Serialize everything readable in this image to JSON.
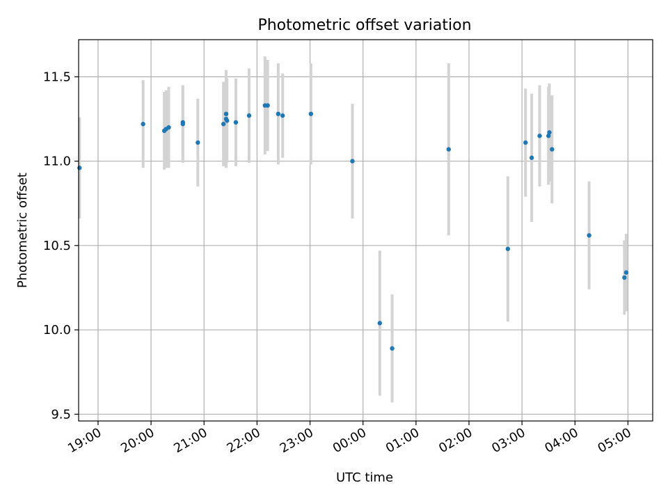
{
  "chart_data": {
    "type": "scatter",
    "title": "Photometric offset variation",
    "xlabel": "UTC time",
    "ylabel": "Photometric offset",
    "x_unit": "hour (wraps past midnight)",
    "xticks": [
      "19:00",
      "20:00",
      "21:00",
      "22:00",
      "23:00",
      "00:00",
      "01:00",
      "02:00",
      "03:00",
      "04:00",
      "05:00"
    ],
    "xlim": [
      "18:38",
      "05:28"
    ],
    "ylim": [
      9.46,
      11.72
    ],
    "yticks": [
      "9.5",
      "10.0",
      "10.5",
      "11.0",
      "11.5"
    ],
    "grid": true,
    "colors": {
      "point": "#1f77b4",
      "errorbar": "#d3d3d3",
      "grid": "#b0b0b0"
    },
    "points": [
      {
        "x": "18:39",
        "y": 10.96,
        "err": 0.3
      },
      {
        "x": "19:51",
        "y": 11.22,
        "err": 0.26
      },
      {
        "x": "20:15",
        "y": 11.18,
        "err": 0.23
      },
      {
        "x": "20:17",
        "y": 11.19,
        "err": 0.23
      },
      {
        "x": "20:20",
        "y": 11.2,
        "err": 0.24
      },
      {
        "x": "20:36",
        "y": 11.22,
        "err": 0.23
      },
      {
        "x": "20:36",
        "y": 11.23,
        "err": 0.22
      },
      {
        "x": "20:53",
        "y": 11.11,
        "err": 0.26
      },
      {
        "x": "21:22",
        "y": 11.22,
        "err": 0.25
      },
      {
        "x": "21:25",
        "y": 11.28,
        "err": 0.26
      },
      {
        "x": "21:25",
        "y": 11.25,
        "err": 0.29
      },
      {
        "x": "21:26",
        "y": 11.24,
        "err": 0.25
      },
      {
        "x": "21:36",
        "y": 11.23,
        "err": 0.26
      },
      {
        "x": "21:51",
        "y": 11.27,
        "err": 0.28
      },
      {
        "x": "22:09",
        "y": 11.33,
        "err": 0.29
      },
      {
        "x": "22:12",
        "y": 11.33,
        "err": 0.27
      },
      {
        "x": "22:24",
        "y": 11.28,
        "err": 0.3
      },
      {
        "x": "22:29",
        "y": 11.27,
        "err": 0.25
      },
      {
        "x": "23:01",
        "y": 11.28,
        "err": 0.3
      },
      {
        "x": "23:48",
        "y": 11.0,
        "err": 0.34
      },
      {
        "x": "00:19",
        "y": 10.04,
        "err": 0.43
      },
      {
        "x": "00:33",
        "y": 9.89,
        "err": 0.32
      },
      {
        "x": "01:37",
        "y": 11.07,
        "err": 0.51
      },
      {
        "x": "02:44",
        "y": 10.48,
        "err": 0.43
      },
      {
        "x": "03:04",
        "y": 11.11,
        "err": 0.32
      },
      {
        "x": "03:11",
        "y": 11.02,
        "err": 0.38
      },
      {
        "x": "03:20",
        "y": 11.15,
        "err": 0.3
      },
      {
        "x": "03:30",
        "y": 11.15,
        "err": 0.29
      },
      {
        "x": "03:31",
        "y": 11.17,
        "err": 0.29
      },
      {
        "x": "03:34",
        "y": 11.07,
        "err": 0.32
      },
      {
        "x": "04:16",
        "y": 10.56,
        "err": 0.32
      },
      {
        "x": "04:56",
        "y": 10.31,
        "err": 0.22
      },
      {
        "x": "04:58",
        "y": 10.34,
        "err": 0.23
      }
    ]
  }
}
